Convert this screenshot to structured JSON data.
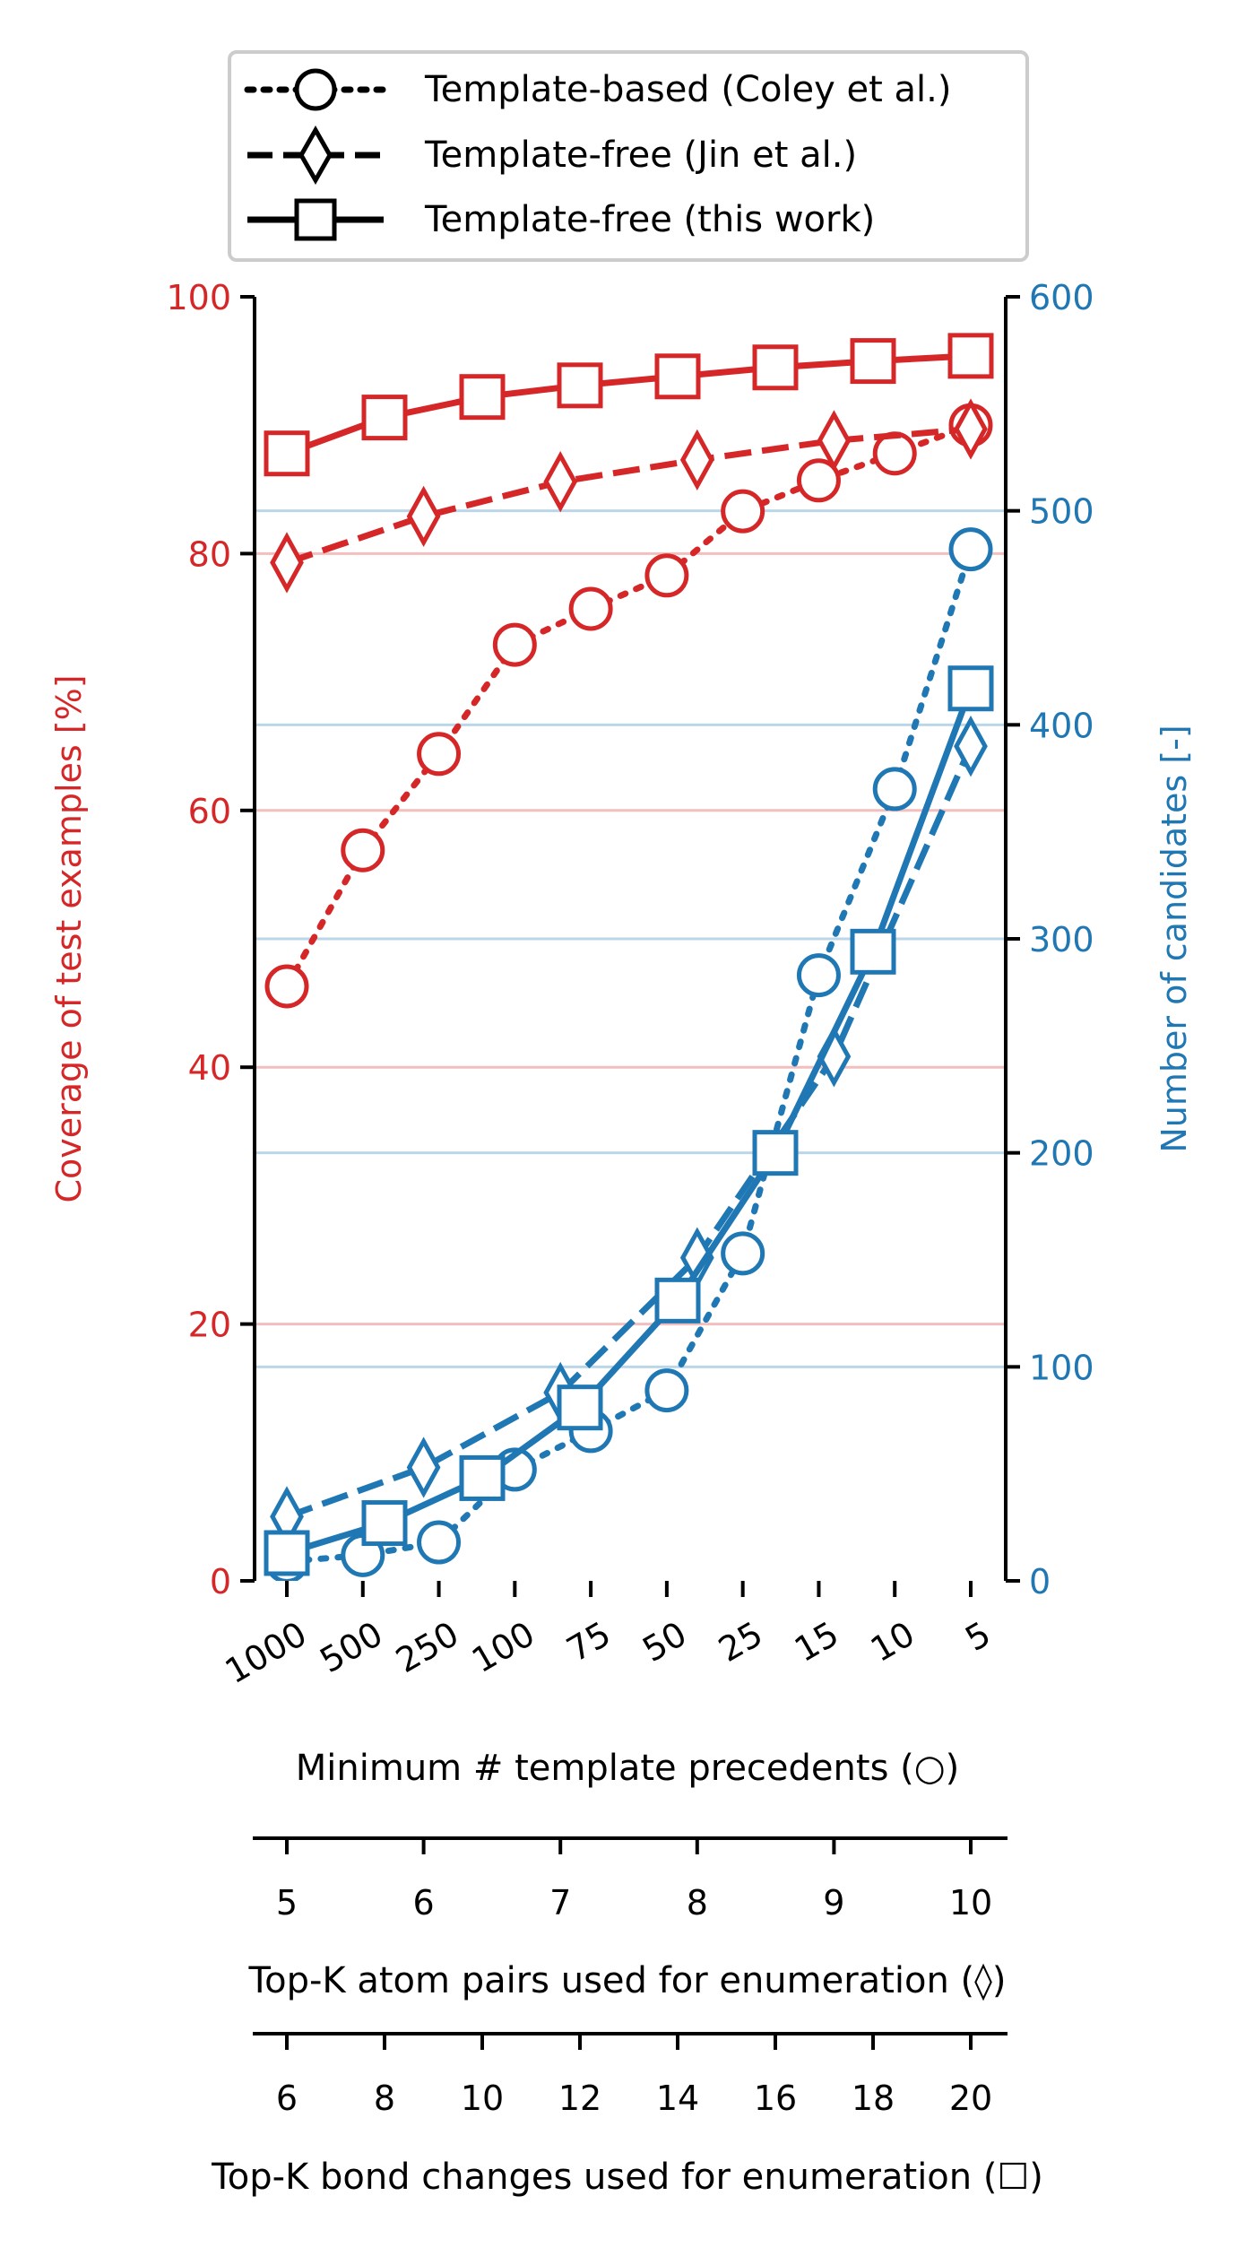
{
  "chart_data": {
    "type": "line",
    "colors": {
      "coverage": "#d62728",
      "candidates": "#1f77b4",
      "axis": "#000000"
    },
    "legend": {
      "placement": "top",
      "entries": [
        {
          "label": "Template-based (Coley et al.)",
          "marker": "circle",
          "linestyle": "dotted"
        },
        {
          "label": "Template-free (Jin et al.)",
          "marker": "diamond",
          "linestyle": "dashed"
        },
        {
          "label": "Template-free (this work)",
          "marker": "square",
          "linestyle": "solid"
        }
      ]
    },
    "left_axis": {
      "label": "Coverage of test examples [%]",
      "ylim": [
        0,
        100
      ],
      "ticks": [
        "0",
        "20",
        "40",
        "60",
        "80",
        "100"
      ],
      "grid": true
    },
    "right_axis": {
      "label": "Number of candidates [-]",
      "ylim": [
        0,
        600
      ],
      "ticks": [
        "0",
        "100",
        "200",
        "300",
        "400",
        "500",
        "600"
      ],
      "grid": true
    },
    "x_axes": [
      {
        "label": "Minimum # template precedents (○)",
        "ticks": [
          "1000",
          "500",
          "250",
          "100",
          "75",
          "50",
          "25",
          "15",
          "10",
          "5"
        ],
        "tick_rotation": 30
      },
      {
        "label": "Top-K atom pairs used for enumeration (◊)",
        "ticks": [
          "5",
          "6",
          "7",
          "8",
          "9",
          "10"
        ]
      },
      {
        "label": "Top-K bond changes used for enumeration (☐)",
        "ticks": [
          "6",
          "8",
          "10",
          "12",
          "14",
          "16",
          "18",
          "20"
        ]
      }
    ],
    "series": [
      {
        "name": "Template-based (Coley et al.)",
        "metric": "coverage",
        "axis": "left",
        "marker": "circle",
        "linestyle": "dotted",
        "x_axis": 0,
        "x": [
          "1000",
          "500",
          "250",
          "100",
          "75",
          "50",
          "25",
          "15",
          "10",
          "5"
        ],
        "values": [
          46.3,
          56.9,
          64.4,
          72.9,
          75.7,
          78.3,
          83.3,
          85.7,
          87.8,
          90.0
        ]
      },
      {
        "name": "Template-free (Jin et al.)",
        "metric": "coverage",
        "axis": "left",
        "marker": "diamond",
        "linestyle": "dashed",
        "x_axis": 1,
        "x": [
          "5",
          "6",
          "7",
          "8",
          "9",
          "10"
        ],
        "values": [
          79.3,
          82.9,
          85.6,
          87.3,
          88.8,
          89.7
        ]
      },
      {
        "name": "Template-free (this work)",
        "metric": "coverage",
        "axis": "left",
        "marker": "square",
        "linestyle": "solid",
        "x_axis": 2,
        "x": [
          "6",
          "8",
          "10",
          "12",
          "14",
          "16",
          "18",
          "20"
        ],
        "values": [
          87.8,
          90.6,
          92.2,
          93.1,
          93.8,
          94.5,
          95.0,
          95.4
        ]
      },
      {
        "name": "Template-based (Coley et al.)",
        "metric": "candidates",
        "axis": "right",
        "marker": "circle",
        "linestyle": "dotted",
        "x_axis": 0,
        "x": [
          "1000",
          "500",
          "250",
          "100",
          "75",
          "50",
          "25",
          "15",
          "10",
          "5"
        ],
        "values": [
          9,
          12,
          18,
          52,
          70,
          89,
          153,
          283,
          370,
          482
        ]
      },
      {
        "name": "Template-free (Jin et al.)",
        "metric": "candidates",
        "axis": "right",
        "marker": "diamond",
        "linestyle": "dashed",
        "x_axis": 1,
        "x": [
          "5",
          "6",
          "7",
          "8",
          "9",
          "10"
        ],
        "values": [
          30,
          53,
          88,
          151,
          245,
          390
        ]
      },
      {
        "name": "Template-free (this work)",
        "metric": "candidates",
        "axis": "right",
        "marker": "square",
        "linestyle": "solid",
        "x_axis": 2,
        "x": [
          "6",
          "8",
          "10",
          "12",
          "14",
          "16",
          "18",
          "20"
        ],
        "values": [
          13,
          27,
          48,
          81,
          131,
          200,
          294,
          417
        ]
      }
    ]
  }
}
